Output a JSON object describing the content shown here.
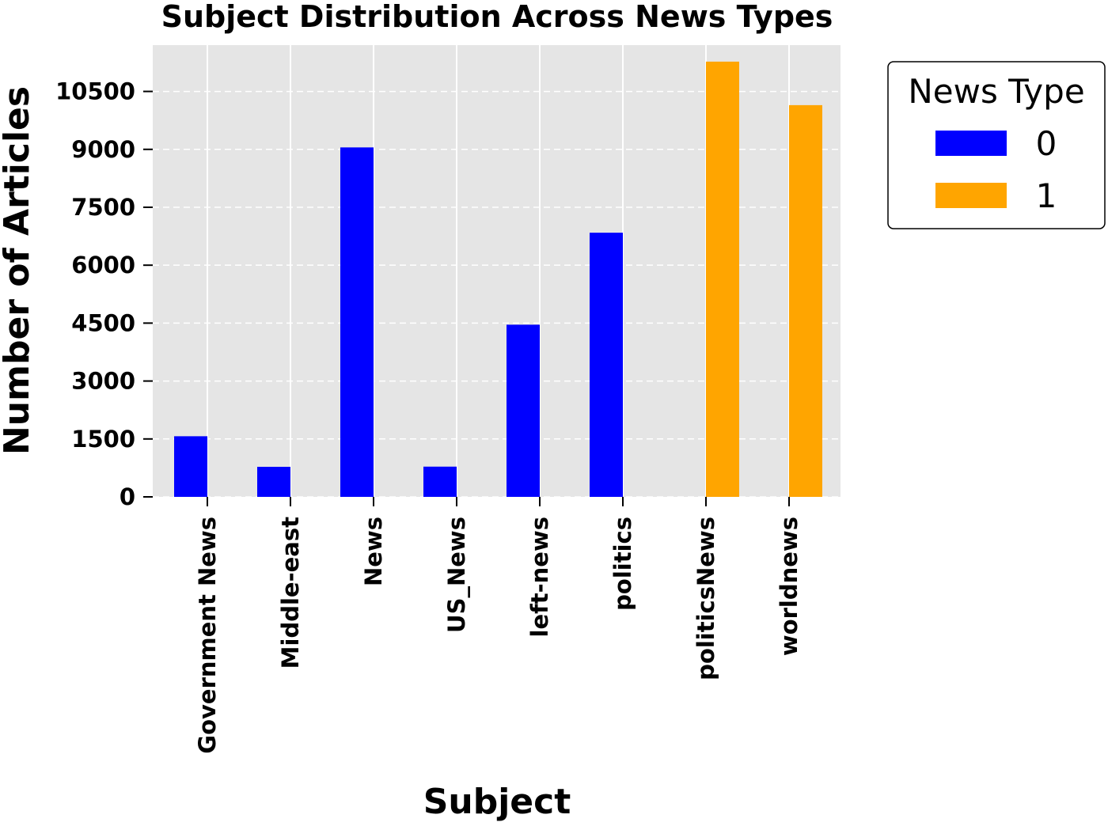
{
  "chart_data": {
    "type": "bar",
    "title": "Subject Distribution Across News Types",
    "xlabel": "Subject",
    "ylabel": "Number of Articles",
    "categories": [
      "Government News",
      "Middle-east",
      "News",
      "US_News",
      "left-news",
      "politics",
      "politicsNews",
      "worldnews"
    ],
    "series": [
      {
        "name": "0",
        "color": "#0000ff",
        "values": [
          1570,
          778,
          9050,
          783,
          4459,
          6841,
          0,
          0
        ]
      },
      {
        "name": "1",
        "color": "#ffa500",
        "values": [
          0,
          0,
          0,
          0,
          0,
          0,
          11272,
          10145
        ]
      }
    ],
    "ylim": [
      0,
      11700
    ],
    "yticks": [
      0,
      1500,
      3000,
      4500,
      6000,
      7500,
      9000,
      10500
    ],
    "grid": "y dashed, x solid at category ticks",
    "legend": {
      "title": "News Type",
      "placement": "outside-right-top"
    },
    "plot_background": "#e5e5e5"
  }
}
